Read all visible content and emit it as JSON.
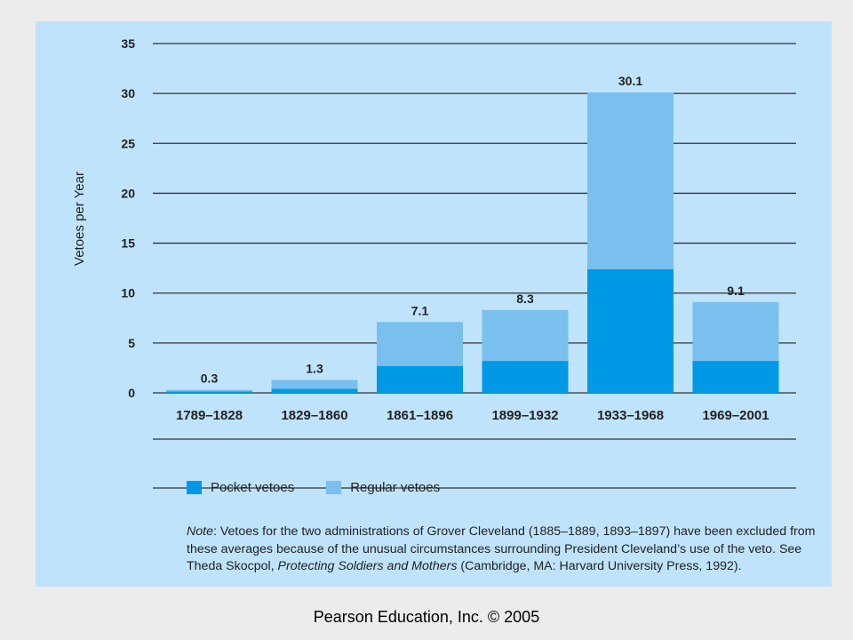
{
  "chart_data": {
    "type": "bar",
    "stacked": true,
    "categories": [
      "1789–1828",
      "1829–1860",
      "1861–1896",
      "1899–1932",
      "1933–1968",
      "1969–2001"
    ],
    "series": [
      {
        "name": "Pocket vetoes",
        "color": "#0099e6",
        "values": [
          0.15,
          0.4,
          2.7,
          3.2,
          12.4,
          3.2
        ]
      },
      {
        "name": "Regular vetoes",
        "color": "#79c0ef",
        "values": [
          0.15,
          0.9,
          4.4,
          5.1,
          17.7,
          5.9
        ]
      }
    ],
    "totals": [
      0.3,
      1.3,
      7.1,
      8.3,
      30.1,
      9.1
    ],
    "total_labels": [
      "0.3",
      "1.3",
      "7.1",
      "8.3",
      "30.1",
      "9.1"
    ],
    "ylabel": "Vetoes per Year",
    "ylim": [
      0,
      35
    ],
    "yticks": [
      "0",
      "5",
      "10",
      "15",
      "20",
      "25",
      "30",
      "35"
    ],
    "grid": true,
    "legend_position": "bottom-left"
  },
  "legend": {
    "pocket_label": "Pocket vetoes",
    "regular_label": "Regular vetoes"
  },
  "note": {
    "label": "Note",
    "text1": ": Vetoes for the two administrations of Grover Cleveland (1885–1889, 1893–1897) have been excluded from these averages because of the unusual circumstances surrounding President Cleveland’s use of the veto. See Theda Skocpol, ",
    "title": "Protecting Soldiers and Mothers",
    "text2": " (Cambridge, MA: Harvard University Press, 1992)."
  },
  "footer": "Pearson Education, Inc. © 2005",
  "colors": {
    "panel_background": "#bfe3fb",
    "pocket": "#0099e6",
    "regular": "#79c0ef"
  }
}
